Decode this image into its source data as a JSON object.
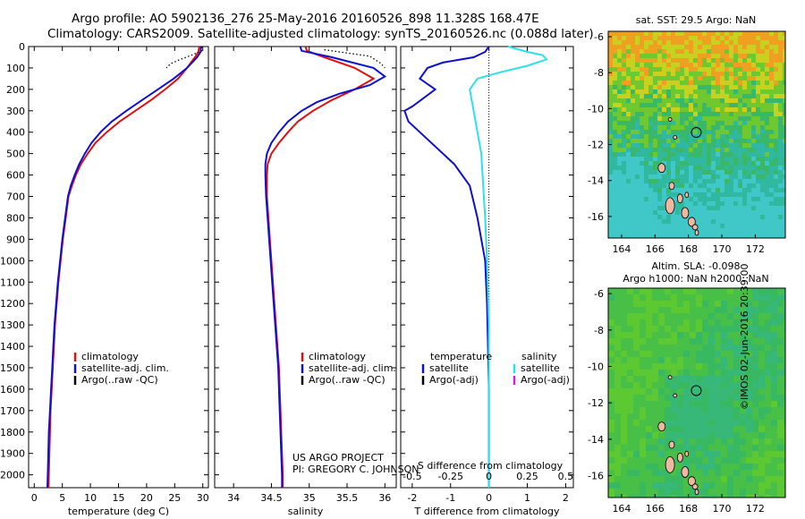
{
  "header": {
    "line1": "Argo profile: AO 5902136_276 25-May-2016 20160526_898 11.328S 168.47E",
    "line2": "Climatology: CARS2009. Satellite-adjusted climatology: synTS_20160526.nc (0.088d later)"
  },
  "credits": {
    "project": "US ARGO PROJECT",
    "pi": "PI: GREGORY C. JOHNSON",
    "stamp": "©IMOS 02-Jun-2016 20:39:00"
  },
  "colors": {
    "climatology": "#e01010",
    "satellite": "#1010d0",
    "argo": "#000000",
    "satellite_salinity": "#30e0e8",
    "argo_adj_salinity": "#d020d0"
  },
  "chart_data": [
    {
      "type": "line",
      "name": "temperature-profile",
      "xlabel": "temperature (deg C)",
      "ylabel": "",
      "xlim": [
        -1,
        31
      ],
      "ylim": [
        2060,
        0
      ],
      "xticks": [
        0,
        5,
        10,
        15,
        20,
        25,
        30
      ],
      "yticks": [
        0,
        100,
        200,
        300,
        400,
        500,
        600,
        700,
        800,
        900,
        1000,
        1100,
        1200,
        1300,
        1400,
        1500,
        1600,
        1700,
        1800,
        1900,
        2000
      ],
      "legend": [
        "climatology",
        "satellite-adj. clim.",
        "Argo(..raw -QC)"
      ],
      "legend_position": "lower-left",
      "series": [
        {
          "name": "climatology",
          "color": "#e01010",
          "points": [
            [
              29.4,
              0
            ],
            [
              29.2,
              25
            ],
            [
              28.6,
              50
            ],
            [
              27.2,
              100
            ],
            [
              25.6,
              150
            ],
            [
              23.3,
              200
            ],
            [
              20.8,
              250
            ],
            [
              18.0,
              300
            ],
            [
              15.2,
              350
            ],
            [
              12.9,
              400
            ],
            [
              10.9,
              450
            ],
            [
              9.5,
              500
            ],
            [
              8.3,
              550
            ],
            [
              7.4,
              600
            ],
            [
              6.7,
              650
            ],
            [
              6.1,
              700
            ],
            [
              5.6,
              800
            ],
            [
              5.1,
              900
            ],
            [
              4.7,
              1000
            ],
            [
              4.3,
              1100
            ],
            [
              4.0,
              1200
            ],
            [
              3.7,
              1300
            ],
            [
              3.5,
              1400
            ],
            [
              3.3,
              1500
            ],
            [
              3.1,
              1600
            ],
            [
              2.9,
              1700
            ],
            [
              2.8,
              1800
            ],
            [
              2.7,
              1900
            ],
            [
              2.6,
              2000
            ],
            [
              2.55,
              2060
            ]
          ]
        },
        {
          "name": "satellite-adj. clim.",
          "color": "#1010d0",
          "points": [
            [
              29.7,
              0
            ],
            [
              29.6,
              25
            ],
            [
              29.0,
              50
            ],
            [
              27.2,
              100
            ],
            [
              24.8,
              150
            ],
            [
              22.0,
              200
            ],
            [
              19.2,
              250
            ],
            [
              16.4,
              300
            ],
            [
              13.8,
              350
            ],
            [
              11.8,
              400
            ],
            [
              10.2,
              450
            ],
            [
              9.0,
              500
            ],
            [
              8.0,
              550
            ],
            [
              7.2,
              600
            ],
            [
              6.5,
              650
            ],
            [
              6.0,
              700
            ],
            [
              5.5,
              800
            ],
            [
              5.0,
              900
            ],
            [
              4.6,
              1000
            ],
            [
              4.2,
              1100
            ],
            [
              3.9,
              1200
            ],
            [
              3.6,
              1300
            ],
            [
              3.4,
              1400
            ],
            [
              3.2,
              1500
            ],
            [
              3.0,
              1600
            ],
            [
              2.8,
              1700
            ],
            [
              2.6,
              1800
            ],
            [
              2.5,
              1900
            ],
            [
              2.4,
              2000
            ],
            [
              2.35,
              2060
            ]
          ]
        },
        {
          "name": "Argo(..raw -QC)",
          "color": "#000000",
          "dotted": true,
          "points": [
            [
              29.8,
              0
            ],
            [
              29.8,
              20
            ],
            [
              28.0,
              40
            ],
            [
              26.0,
              60
            ],
            [
              24.3,
              80
            ],
            [
              23.5,
              100
            ]
          ]
        }
      ]
    },
    {
      "type": "line",
      "name": "salinity-profile",
      "xlabel": "salinity",
      "ylabel": "",
      "xlim": [
        33.75,
        36.15
      ],
      "ylim": [
        2060,
        0
      ],
      "xticks": [
        34,
        34.5,
        35,
        35.5,
        36
      ],
      "legend": [
        "climatology",
        "satellite-adj. clim.",
        "Argo(..raw -QC)"
      ],
      "legend_position": "lower-right",
      "series": [
        {
          "name": "climatology",
          "color": "#e01010",
          "points": [
            [
              34.95,
              0
            ],
            [
              34.97,
              20
            ],
            [
              35.2,
              50
            ],
            [
              35.6,
              100
            ],
            [
              35.85,
              150
            ],
            [
              35.6,
              200
            ],
            [
              35.3,
              250
            ],
            [
              35.05,
              300
            ],
            [
              34.85,
              350
            ],
            [
              34.72,
              400
            ],
            [
              34.6,
              450
            ],
            [
              34.5,
              500
            ],
            [
              34.45,
              550
            ],
            [
              34.44,
              600
            ],
            [
              34.44,
              700
            ],
            [
              34.46,
              800
            ],
            [
              34.48,
              900
            ],
            [
              34.5,
              1000
            ],
            [
              34.52,
              1100
            ],
            [
              34.54,
              1200
            ],
            [
              34.56,
              1300
            ],
            [
              34.58,
              1400
            ],
            [
              34.6,
              1500
            ],
            [
              34.61,
              1600
            ],
            [
              34.62,
              1700
            ],
            [
              34.63,
              1800
            ],
            [
              34.64,
              1900
            ],
            [
              34.65,
              2000
            ],
            [
              34.65,
              2060
            ]
          ]
        },
        {
          "name": "satellite-adj. clim.",
          "color": "#1010d0",
          "points": [
            [
              34.88,
              0
            ],
            [
              34.9,
              20
            ],
            [
              35.3,
              50
            ],
            [
              35.85,
              100
            ],
            [
              36.0,
              140
            ],
            [
              35.8,
              180
            ],
            [
              35.4,
              220
            ],
            [
              35.1,
              260
            ],
            [
              34.9,
              300
            ],
            [
              34.72,
              350
            ],
            [
              34.6,
              400
            ],
            [
              34.5,
              450
            ],
            [
              34.44,
              500
            ],
            [
              34.42,
              550
            ],
            [
              34.42,
              600
            ],
            [
              34.43,
              700
            ],
            [
              34.45,
              800
            ],
            [
              34.47,
              900
            ],
            [
              34.49,
              1000
            ],
            [
              34.51,
              1100
            ],
            [
              34.53,
              1200
            ],
            [
              34.55,
              1300
            ],
            [
              34.57,
              1400
            ],
            [
              34.59,
              1500
            ],
            [
              34.6,
              1600
            ],
            [
              34.61,
              1700
            ],
            [
              34.62,
              1800
            ],
            [
              34.63,
              1900
            ],
            [
              34.64,
              2000
            ],
            [
              34.64,
              2060
            ]
          ]
        },
        {
          "name": "Argo(..raw -QC)",
          "color": "#000000",
          "dotted": true,
          "points": [
            [
              35.2,
              15
            ],
            [
              35.5,
              30
            ],
            [
              35.8,
              45
            ],
            [
              35.95,
              80
            ],
            [
              36.0,
              100
            ]
          ]
        }
      ]
    },
    {
      "type": "line",
      "name": "difference-profile",
      "xlabel": "T difference from climatology",
      "x2label": "S difference from climatology",
      "xlim": [
        -2.3,
        2.2
      ],
      "ylim": [
        2060,
        0
      ],
      "xticks_bottom": [
        -2,
        -1,
        0,
        1,
        2
      ],
      "xticks_top": [
        "-0.5",
        "-0.25",
        "0",
        "0.25",
        "0.5"
      ],
      "xticks_top_positions": [
        -2,
        -1,
        0,
        1,
        2
      ],
      "legend_left_title": "temperature",
      "legend_left": [
        "satellite",
        "Argo(-adj)"
      ],
      "legend_right_title": "salinity",
      "legend_right": [
        "satellite",
        "Argo(-adj)"
      ],
      "series": [
        {
          "name": "temperature satellite",
          "color": "#1010d0",
          "points": [
            [
              0,
              0
            ],
            [
              -0.1,
              25
            ],
            [
              -0.4,
              50
            ],
            [
              -1.2,
              75
            ],
            [
              -1.6,
              100
            ],
            [
              -1.8,
              150
            ],
            [
              -1.4,
              200
            ],
            [
              -2.0,
              280
            ],
            [
              -2.2,
              300
            ],
            [
              -2.1,
              350
            ],
            [
              -1.5,
              450
            ],
            [
              -0.9,
              550
            ],
            [
              -0.5,
              650
            ],
            [
              -0.3,
              800
            ],
            [
              -0.1,
              1000
            ],
            [
              -0.05,
              1200
            ],
            [
              0,
              1600
            ],
            [
              0,
              2060
            ]
          ]
        },
        {
          "name": "salinity satellite",
          "color": "#30e0e8",
          "points": [
            [
              0.5,
              0
            ],
            [
              1.0,
              25
            ],
            [
              1.4,
              40
            ],
            [
              1.5,
              60
            ],
            [
              1.0,
              90
            ],
            [
              0.3,
              120
            ],
            [
              -0.3,
              150
            ],
            [
              -0.5,
              200
            ],
            [
              -0.4,
              300
            ],
            [
              -0.3,
              400
            ],
            [
              -0.2,
              500
            ],
            [
              -0.15,
              650
            ],
            [
              -0.1,
              800
            ],
            [
              -0.05,
              1000
            ],
            [
              0,
              1300
            ],
            [
              0,
              2060
            ]
          ]
        }
      ]
    },
    {
      "type": "heatmap",
      "name": "sst-map",
      "title": "sat. SST: 29.5  Argo: NaN",
      "xlim": [
        163.2,
        173.8
      ],
      "ylim": [
        -17.2,
        -5.7
      ],
      "xticks": [
        164,
        166,
        168,
        170,
        172
      ],
      "yticks": [
        -6,
        -8,
        -10,
        -12,
        -14,
        -16
      ],
      "profile_location": [
        168.47,
        -11.328
      ]
    },
    {
      "type": "heatmap",
      "name": "sla-map",
      "title": "Altim. SLA: -0.098",
      "subtitle": "Argo h1000: NaN h2000: NaN",
      "xlim": [
        163.2,
        173.8
      ],
      "ylim": [
        -17.2,
        -5.7
      ],
      "xticks": [
        164,
        166,
        168,
        170,
        172
      ],
      "yticks": [
        -6,
        -8,
        -10,
        -12,
        -14,
        -16
      ],
      "profile_location": [
        168.47,
        -11.328
      ]
    }
  ]
}
